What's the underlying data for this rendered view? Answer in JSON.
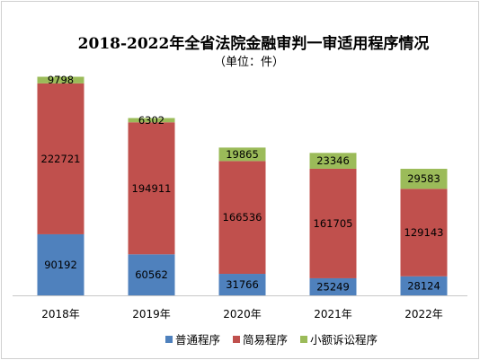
{
  "chart_data": {
    "type": "bar",
    "stacked": true,
    "title": "2018-2022年全省法院金融审判一审适用程序情况",
    "subtitle": "（单位：件）",
    "categories": [
      "2018年",
      "2019年",
      "2020年",
      "2021年",
      "2022年"
    ],
    "series": [
      {
        "name": "普通程序",
        "color": "#4f81bd",
        "values": [
          90192,
          60562,
          31766,
          25249,
          28124
        ]
      },
      {
        "name": "简易程序",
        "color": "#c0504d",
        "values": [
          222721,
          194911,
          166536,
          161705,
          129143
        ]
      },
      {
        "name": "小额诉讼程序",
        "color": "#9bbb59",
        "values": [
          9798,
          6302,
          19865,
          23346,
          29583
        ]
      }
    ],
    "ylim": [
      0,
      330000
    ],
    "grid": false,
    "legend_position": "bottom"
  }
}
